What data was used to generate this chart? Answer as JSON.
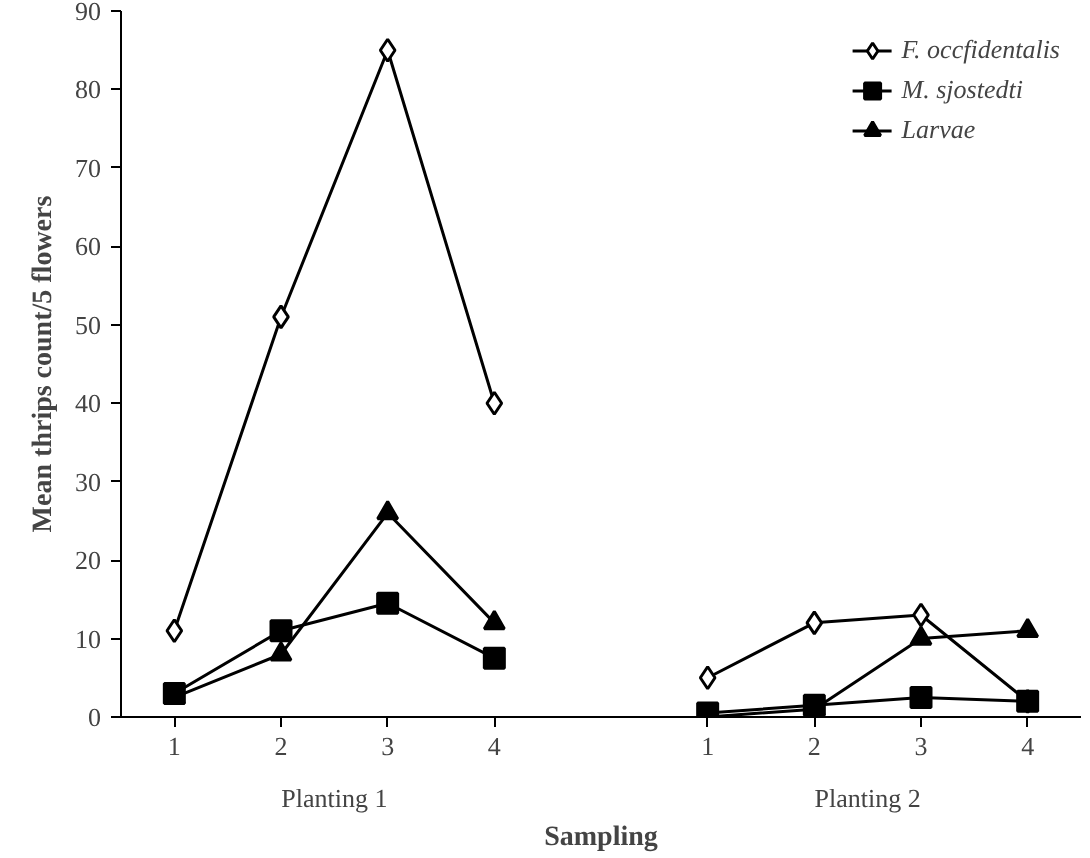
{
  "chart_data": {
    "type": "line",
    "xlabel": "Sampling",
    "ylabel": "Mean thrips count/5 flowers",
    "categories": [
      "1",
      "2",
      "3",
      "4",
      null,
      "1",
      "2",
      "3",
      "4"
    ],
    "annotations": [
      "Planting 1",
      "Planting 2"
    ],
    "series": [
      {
        "name": "F. occfidentalis",
        "color": "#000000",
        "marker": "diamond",
        "values": [
          11,
          51,
          85,
          40,
          null,
          5,
          12,
          13,
          2
        ]
      },
      {
        "name": "M. sjostedti",
        "color": "#000000",
        "marker": "square",
        "values": [
          3,
          11,
          14.5,
          7.5,
          null,
          0.5,
          1.5,
          2.5,
          2
        ]
      },
      {
        "name": "Larvae",
        "color": "#000000",
        "marker": "triangle",
        "values": [
          2.5,
          8,
          26,
          12,
          null,
          0,
          1,
          10,
          11
        ]
      }
    ],
    "ylim": [
      0,
      90
    ],
    "yticks": [
      0,
      10,
      20,
      30,
      40,
      50,
      60,
      70,
      80,
      90
    ],
    "legend": "top right",
    "grid": false
  }
}
